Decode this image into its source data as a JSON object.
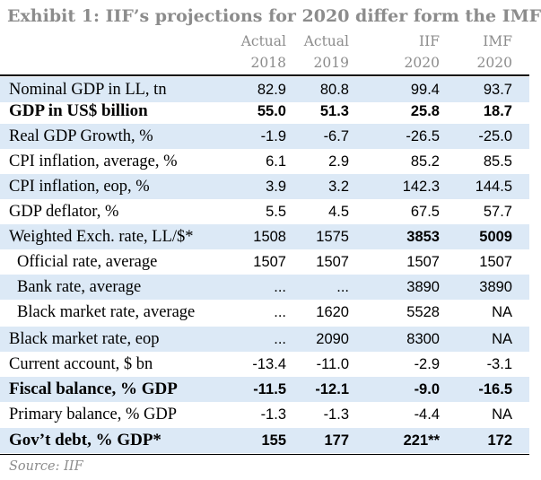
{
  "title": "Exhibit 1: IIF’s projections for 2020 differ form the IMF",
  "columns": [
    {
      "line1": "Actual",
      "line2": "2018"
    },
    {
      "line1": "Actual",
      "line2": "2019"
    },
    {
      "line1": "IIF",
      "line2": "2020"
    },
    {
      "line1": "IMF",
      "line2": "2020"
    }
  ],
  "rows": [
    {
      "label": "Nominal GDP in LL, tn",
      "values": [
        "82.9",
        "80.8",
        "99.4",
        "93.7"
      ]
    },
    {
      "label": "GDP in US$ billion",
      "values": [
        "55.0",
        "51.3",
        "25.8",
        "18.7"
      ]
    },
    {
      "label": "Real GDP Growth, %",
      "values": [
        "-1.9",
        "-6.7",
        "-26.5",
        "-25.0"
      ]
    },
    {
      "label": "CPI inflation, average, %",
      "values": [
        "6.1",
        "2.9",
        "85.2",
        "85.5"
      ]
    },
    {
      "label": "CPI inflation, eop, %",
      "values": [
        "3.9",
        "3.2",
        "142.3",
        "144.5"
      ]
    },
    {
      "label": "GDP deflator, %",
      "values": [
        "5.5",
        "4.5",
        "67.5",
        "57.7"
      ]
    },
    {
      "label": "Weighted Exch. rate, LL/$*",
      "values": [
        "1508",
        "1575",
        "3853",
        "5009"
      ]
    },
    {
      "label": "Official rate, average",
      "values": [
        "1507",
        "1507",
        "1507",
        "1507"
      ]
    },
    {
      "label": "Bank rate, average",
      "values": [
        "...",
        "...",
        "3890",
        "3890"
      ]
    },
    {
      "label": "Black market rate, average",
      "values": [
        "...",
        "1620",
        "5528",
        "NA"
      ]
    },
    {
      "label": "Black market rate, eop",
      "values": [
        "...",
        "2090",
        "8300",
        "NA"
      ]
    },
    {
      "label": "Current account, $ bn",
      "values": [
        "-13.4",
        "-11.0",
        "-2.9",
        "-3.1"
      ]
    },
    {
      "label": "Fiscal balance, % GDP",
      "values": [
        "-11.5",
        "-12.1",
        "-9.0",
        "-16.5"
      ]
    },
    {
      "label": "Primary balance, % GDP",
      "values": [
        "-1.3",
        "-1.3",
        "-4.4",
        "NA"
      ]
    },
    {
      "label": "Gov’t debt, % GDP*",
      "values": [
        "155",
        "177",
        "221**",
        "172"
      ]
    }
  ],
  "source": "Source: IIF",
  "colors": {
    "shade": "#dce9f6",
    "header_text": "#8c8c8c",
    "text": "#000000"
  }
}
